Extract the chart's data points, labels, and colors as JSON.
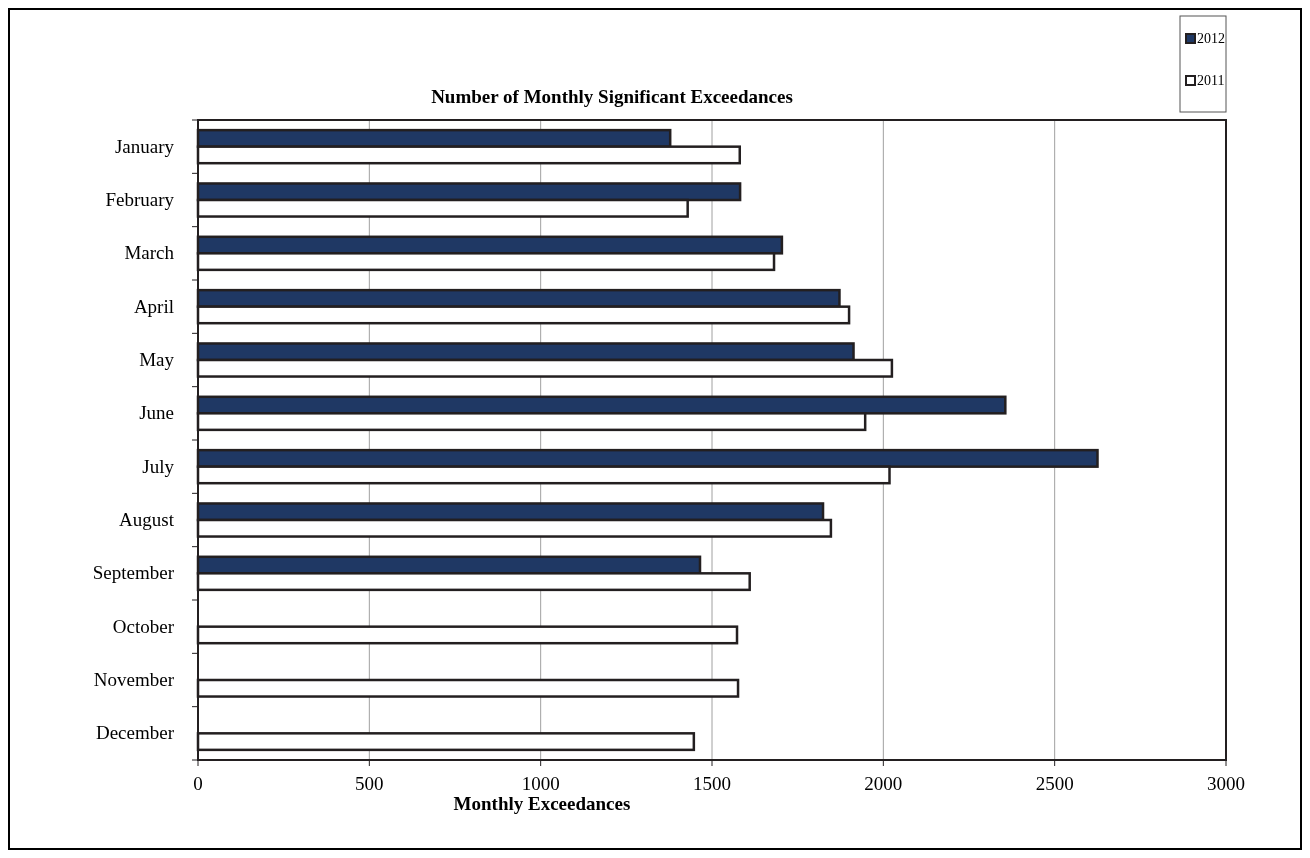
{
  "chart_data": {
    "type": "bar",
    "orientation": "horizontal",
    "title": "Number of Monthly Significant Exceedances",
    "xlabel": "Monthly Exceedances",
    "categories": [
      "January",
      "February",
      "March",
      "April",
      "May",
      "June",
      "July",
      "August",
      "September",
      "October",
      "November",
      "December"
    ],
    "series": [
      {
        "name": "2012",
        "color": "#1f3864",
        "values": [
          1378,
          1582,
          1704,
          1872,
          1913,
          2356,
          2625,
          1824,
          1465,
          null,
          null,
          null
        ]
      },
      {
        "name": "2011",
        "color": "#ffffff",
        "values": [
          1581,
          1429,
          1681,
          1900,
          2025,
          1947,
          2018,
          1847,
          1610,
          1573,
          1576,
          1447
        ]
      }
    ],
    "xlim": [
      0,
      3000
    ],
    "xticks": [
      0,
      500,
      1000,
      1500,
      2000,
      2500,
      3000
    ],
    "grid": "x",
    "legend": "top right"
  }
}
